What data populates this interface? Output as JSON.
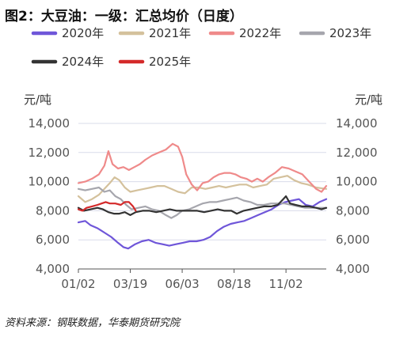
{
  "chart_data": {
    "type": "line",
    "title": "图2：大豆油：一级：汇总均价（日度）",
    "ylabel_left": "元/吨",
    "ylabel_right": "元/吨",
    "ylim": [
      4000,
      14000
    ],
    "y_ticks": [
      "4,000",
      "6,000",
      "8,000",
      "10,000",
      "12,000",
      "14,000"
    ],
    "y_tick_values": [
      4000,
      6000,
      8000,
      10000,
      12000,
      14000
    ],
    "x_ticks": [
      "01/02",
      "03/19",
      "06/03",
      "08/18",
      "11/02"
    ],
    "x_tick_days": [
      2,
      78,
      154,
      230,
      306
    ],
    "x_range_days": [
      2,
      365
    ],
    "grid": true,
    "legend_position": "top",
    "source": "资料来源：钢联数据，华泰期货研究院",
    "series": [
      {
        "name": "2020年",
        "color": "#6f56d9",
        "points": [
          [
            2,
            7200
          ],
          [
            12,
            7300
          ],
          [
            20,
            7000
          ],
          [
            30,
            6800
          ],
          [
            40,
            6500
          ],
          [
            50,
            6200
          ],
          [
            60,
            5800
          ],
          [
            68,
            5500
          ],
          [
            75,
            5400
          ],
          [
            85,
            5700
          ],
          [
            95,
            5900
          ],
          [
            105,
            6000
          ],
          [
            115,
            5800
          ],
          [
            125,
            5700
          ],
          [
            135,
            5600
          ],
          [
            145,
            5700
          ],
          [
            155,
            5800
          ],
          [
            165,
            5900
          ],
          [
            175,
            5900
          ],
          [
            185,
            6000
          ],
          [
            195,
            6200
          ],
          [
            205,
            6600
          ],
          [
            215,
            6900
          ],
          [
            225,
            7100
          ],
          [
            235,
            7200
          ],
          [
            245,
            7300
          ],
          [
            255,
            7500
          ],
          [
            265,
            7700
          ],
          [
            275,
            7900
          ],
          [
            285,
            8100
          ],
          [
            295,
            8400
          ],
          [
            305,
            8600
          ],
          [
            315,
            8700
          ],
          [
            325,
            8800
          ],
          [
            335,
            8400
          ],
          [
            345,
            8300
          ],
          [
            355,
            8600
          ],
          [
            365,
            8800
          ]
        ]
      },
      {
        "name": "2021年",
        "color": "#d4c19c",
        "points": [
          [
            2,
            9000
          ],
          [
            12,
            8600
          ],
          [
            22,
            8800
          ],
          [
            32,
            9100
          ],
          [
            40,
            9500
          ],
          [
            48,
            9900
          ],
          [
            55,
            10300
          ],
          [
            62,
            10100
          ],
          [
            70,
            9600
          ],
          [
            78,
            9300
          ],
          [
            88,
            9400
          ],
          [
            98,
            9500
          ],
          [
            108,
            9600
          ],
          [
            118,
            9700
          ],
          [
            128,
            9700
          ],
          [
            138,
            9500
          ],
          [
            148,
            9300
          ],
          [
            158,
            9200
          ],
          [
            168,
            9600
          ],
          [
            178,
            9600
          ],
          [
            188,
            9500
          ],
          [
            198,
            9600
          ],
          [
            208,
            9700
          ],
          [
            218,
            9600
          ],
          [
            228,
            9700
          ],
          [
            238,
            9800
          ],
          [
            248,
            9800
          ],
          [
            258,
            9600
          ],
          [
            268,
            9700
          ],
          [
            278,
            9800
          ],
          [
            288,
            10200
          ],
          [
            298,
            10300
          ],
          [
            308,
            10400
          ],
          [
            318,
            10100
          ],
          [
            328,
            9900
          ],
          [
            338,
            9800
          ],
          [
            350,
            9600
          ],
          [
            365,
            9500
          ]
        ]
      },
      {
        "name": "2022年",
        "color": "#ef8a8a",
        "points": [
          [
            2,
            9900
          ],
          [
            12,
            10000
          ],
          [
            22,
            10200
          ],
          [
            32,
            10500
          ],
          [
            40,
            11100
          ],
          [
            46,
            12100
          ],
          [
            52,
            11200
          ],
          [
            60,
            10900
          ],
          [
            68,
            11000
          ],
          [
            76,
            10800
          ],
          [
            84,
            11000
          ],
          [
            92,
            11200
          ],
          [
            100,
            11500
          ],
          [
            110,
            11800
          ],
          [
            120,
            12000
          ],
          [
            130,
            12200
          ],
          [
            140,
            12600
          ],
          [
            148,
            12400
          ],
          [
            154,
            11700
          ],
          [
            160,
            10500
          ],
          [
            168,
            9800
          ],
          [
            176,
            9400
          ],
          [
            184,
            9900
          ],
          [
            192,
            10000
          ],
          [
            200,
            10300
          ],
          [
            208,
            10500
          ],
          [
            216,
            10600
          ],
          [
            224,
            10600
          ],
          [
            232,
            10500
          ],
          [
            240,
            10300
          ],
          [
            248,
            10200
          ],
          [
            256,
            10000
          ],
          [
            264,
            10200
          ],
          [
            272,
            10000
          ],
          [
            280,
            10300
          ],
          [
            290,
            10600
          ],
          [
            300,
            11000
          ],
          [
            310,
            10900
          ],
          [
            320,
            10700
          ],
          [
            330,
            10500
          ],
          [
            340,
            10000
          ],
          [
            350,
            9500
          ],
          [
            358,
            9300
          ],
          [
            365,
            9700
          ]
        ]
      },
      {
        "name": "2023年",
        "color": "#a6a6ad",
        "points": [
          [
            2,
            9500
          ],
          [
            12,
            9400
          ],
          [
            22,
            9500
          ],
          [
            32,
            9600
          ],
          [
            40,
            9300
          ],
          [
            48,
            9400
          ],
          [
            56,
            9000
          ],
          [
            64,
            8800
          ],
          [
            72,
            8400
          ],
          [
            80,
            8100
          ],
          [
            90,
            8200
          ],
          [
            100,
            8300
          ],
          [
            110,
            8100
          ],
          [
            120,
            8000
          ],
          [
            130,
            7700
          ],
          [
            138,
            7500
          ],
          [
            146,
            7700
          ],
          [
            154,
            8000
          ],
          [
            164,
            8100
          ],
          [
            174,
            8300
          ],
          [
            184,
            8500
          ],
          [
            194,
            8600
          ],
          [
            204,
            8600
          ],
          [
            214,
            8700
          ],
          [
            224,
            8800
          ],
          [
            234,
            8900
          ],
          [
            244,
            8700
          ],
          [
            254,
            8600
          ],
          [
            264,
            8400
          ],
          [
            274,
            8400
          ],
          [
            284,
            8500
          ],
          [
            294,
            8500
          ],
          [
            304,
            8500
          ],
          [
            314,
            8400
          ],
          [
            324,
            8300
          ],
          [
            334,
            8200
          ],
          [
            344,
            8200
          ],
          [
            354,
            8200
          ],
          [
            365,
            8200
          ]
        ]
      },
      {
        "name": "2024年",
        "color": "#333333",
        "points": [
          [
            2,
            8200
          ],
          [
            10,
            8000
          ],
          [
            20,
            8100
          ],
          [
            30,
            8200
          ],
          [
            38,
            8100
          ],
          [
            46,
            7900
          ],
          [
            54,
            7800
          ],
          [
            62,
            7800
          ],
          [
            70,
            7900
          ],
          [
            78,
            7700
          ],
          [
            86,
            7900
          ],
          [
            96,
            8000
          ],
          [
            106,
            8000
          ],
          [
            116,
            7900
          ],
          [
            126,
            8000
          ],
          [
            136,
            8100
          ],
          [
            146,
            8000
          ],
          [
            156,
            8000
          ],
          [
            166,
            8000
          ],
          [
            176,
            8000
          ],
          [
            186,
            7900
          ],
          [
            196,
            8000
          ],
          [
            206,
            8100
          ],
          [
            216,
            8000
          ],
          [
            226,
            8000
          ],
          [
            234,
            7800
          ],
          [
            244,
            8000
          ],
          [
            254,
            8100
          ],
          [
            264,
            8200
          ],
          [
            274,
            8300
          ],
          [
            284,
            8300
          ],
          [
            294,
            8400
          ],
          [
            302,
            8800
          ],
          [
            306,
            9000
          ],
          [
            312,
            8500
          ],
          [
            320,
            8400
          ],
          [
            330,
            8300
          ],
          [
            340,
            8300
          ],
          [
            350,
            8200
          ],
          [
            358,
            8100
          ],
          [
            365,
            8200
          ]
        ]
      },
      {
        "name": "2025年",
        "color": "#d42a2a",
        "points": [
          [
            2,
            8100
          ],
          [
            8,
            8000
          ],
          [
            14,
            8200
          ],
          [
            22,
            8300
          ],
          [
            30,
            8400
          ],
          [
            36,
            8500
          ],
          [
            42,
            8600
          ],
          [
            48,
            8500
          ],
          [
            56,
            8500
          ],
          [
            64,
            8400
          ],
          [
            70,
            8600
          ],
          [
            76,
            8600
          ],
          [
            82,
            8300
          ],
          [
            86,
            8000
          ]
        ]
      }
    ]
  }
}
